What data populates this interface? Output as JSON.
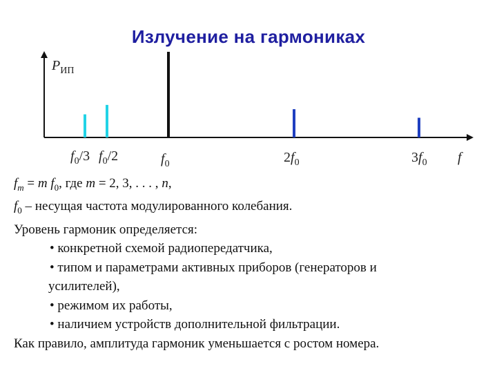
{
  "title": "Излучение на гармониках",
  "chart_data": {
    "type": "bar",
    "ylabel": "P",
    "ylabel_sub": "ИП",
    "xlabel": "f",
    "bars": [
      {
        "label": "f0/3",
        "x": 0.3333,
        "height": 0.27,
        "color": "#22d3e6"
      },
      {
        "label": "f0/2",
        "x": 0.5,
        "height": 0.38,
        "color": "#22d3e6"
      },
      {
        "label": "f0",
        "x": 1,
        "height": 1.0,
        "color": "#111111"
      },
      {
        "label": "2f0",
        "x": 2,
        "height": 0.33,
        "color": "#1f3fc0"
      },
      {
        "label": "3f0",
        "x": 3,
        "height": 0.23,
        "color": "#1f3fc0"
      }
    ],
    "tick_labels": {
      "f0_3": {
        "main": "f",
        "sub": "0",
        "suffix": "/3"
      },
      "f0_2": {
        "main": "f",
        "sub": "0",
        "suffix": "/2"
      },
      "f0": {
        "main": "f",
        "sub": "0",
        "suffix": ""
      },
      "2f0": {
        "prefix": "2",
        "main": "f",
        "sub": "0"
      },
      "3f0": {
        "prefix": "3",
        "main": "f",
        "sub": "0"
      }
    }
  },
  "text": {
    "line1_main": "f",
    "line1_sub": "m",
    "line1_rest1": " = ",
    "line1_m": "m",
    "line1_f": " f",
    "line1_f_sub": "0",
    "line1_rest2": ", где ",
    "line1_m2": "m",
    "line1_rest3": " = 2, 3, . . . , ",
    "line1_n": "n",
    "line1_end": ",",
    "line2_f": "f",
    "line2_sub": "0",
    "line2_rest": " – несущая частота модулированного колебания.",
    "line3": "Уровень гармоник определяется:",
    "bullets": [
      "• конкретной схемой радиопередатчика,",
      "• типом и параметрами активных приборов (генераторов и",
      "усилителей),",
      "• режимом их работы,",
      "• наличием устройств дополнительной фильтрации."
    ],
    "last": "Как правило, амплитуда гармоник уменьшается с ростом номера."
  }
}
